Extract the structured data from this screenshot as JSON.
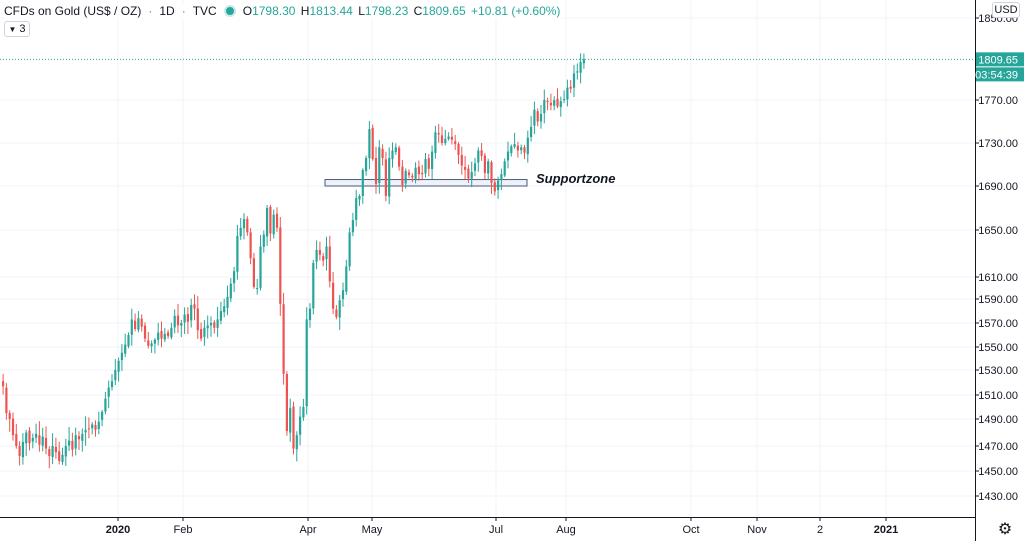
{
  "legend": {
    "symbol": "CFDs on Gold (US$ / OZ)",
    "interval": "1D",
    "exchange": "TVC",
    "open_label": "O",
    "open": "1798.30",
    "high_label": "H",
    "high": "1813.44",
    "low_label": "L",
    "low": "1798.23",
    "close_label": "C",
    "close": "1809.65",
    "change": "+10.81 (+0.60%)",
    "collapsed_count": "3"
  },
  "price_axis": {
    "currency": "USD",
    "tick_labels": [
      "1850.00",
      "1770.00",
      "1730.00",
      "1690.00",
      "1650.00",
      "1610.00",
      "1590.00",
      "1570.00",
      "1550.00",
      "1530.00",
      "1510.00",
      "1490.00",
      "1470.00",
      "1450.00",
      "1430.00"
    ],
    "last_price": "1809.65",
    "countdown": "03:54:39"
  },
  "time_axis": {
    "labels": [
      "2020",
      "Feb",
      "Apr",
      "May",
      "Jul",
      "Aug",
      "Oct",
      "Nov",
      "2",
      "2021"
    ]
  },
  "annotation": {
    "label": "Supportzone",
    "top": 1696,
    "bottom": 1690
  },
  "colors": {
    "up": "#26a69a",
    "down": "#ef5350",
    "grid": "#f0f3fa",
    "zone_fill": "#e8edf6",
    "zone_border": "#4a5a7a"
  },
  "chart_data": {
    "type": "candlestick",
    "title": "CFDs on Gold (US$ / OZ)",
    "interval": "1D",
    "ylabel": "USD",
    "ylim": [
      1420,
      1855
    ],
    "y_ticks": [
      1850,
      1770,
      1730,
      1690,
      1650,
      1610,
      1590,
      1570,
      1550,
      1530,
      1510,
      1490,
      1470,
      1450,
      1430
    ],
    "x_ticks": [
      "2020",
      "Feb",
      "Apr",
      "May",
      "Jul",
      "Aug",
      "Oct",
      "Nov",
      "2",
      "2021"
    ],
    "last_close": 1809.65,
    "closes": [
      1517,
      1495,
      1490,
      1478,
      1470,
      1462,
      1473,
      1480,
      1472,
      1476,
      1479,
      1471,
      1477,
      1468,
      1462,
      1470,
      1465,
      1458,
      1463,
      1470,
      1474,
      1467,
      1478,
      1475,
      1479,
      1482,
      1483,
      1486,
      1482,
      1488,
      1496,
      1507,
      1516,
      1521,
      1530,
      1538,
      1545,
      1552,
      1560,
      1573,
      1565,
      1574,
      1567,
      1557,
      1551,
      1553,
      1556,
      1562,
      1557,
      1561,
      1559,
      1566,
      1576,
      1568,
      1570,
      1577,
      1571,
      1585,
      1582,
      1564,
      1557,
      1566,
      1568,
      1570,
      1566,
      1573,
      1580,
      1584,
      1592,
      1604,
      1615,
      1645,
      1652,
      1660,
      1648,
      1626,
      1601,
      1600,
      1636,
      1646,
      1670,
      1647,
      1664,
      1652,
      1586,
      1527,
      1481,
      1499,
      1468,
      1478,
      1492,
      1500,
      1573,
      1582,
      1622,
      1633,
      1629,
      1624,
      1636,
      1606,
      1582,
      1575,
      1589,
      1598,
      1619,
      1648,
      1659,
      1679,
      1681,
      1705,
      1716,
      1743,
      1715,
      1692,
      1726,
      1716,
      1681,
      1716,
      1723,
      1726,
      1708,
      1691,
      1704,
      1700,
      1698,
      1707,
      1701,
      1701,
      1715,
      1706,
      1722,
      1740,
      1738,
      1730,
      1734,
      1736,
      1733,
      1729,
      1719,
      1709,
      1705,
      1697,
      1703,
      1711,
      1723,
      1718,
      1702,
      1713,
      1693,
      1685,
      1695,
      1701,
      1713,
      1722,
      1727,
      1729,
      1723,
      1726,
      1721,
      1735,
      1745,
      1761,
      1750,
      1757,
      1770,
      1768,
      1765,
      1770,
      1764,
      1769,
      1771,
      1782,
      1781,
      1796,
      1798,
      1807,
      1809.65
    ]
  }
}
